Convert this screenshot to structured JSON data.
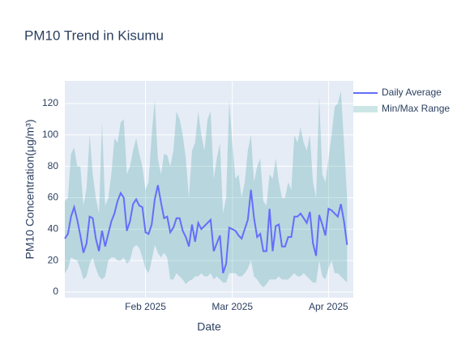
{
  "chart_data": {
    "type": "line",
    "title": "PM10 Trend in Kisumu",
    "x_label": "Date",
    "y_label": "PM10 Concentration(μg/m³)",
    "x": [
      "2025-01-06",
      "2025-01-07",
      "2025-01-08",
      "2025-01-09",
      "2025-01-10",
      "2025-01-11",
      "2025-01-12",
      "2025-01-13",
      "2025-01-14",
      "2025-01-15",
      "2025-01-16",
      "2025-01-17",
      "2025-01-18",
      "2025-01-19",
      "2025-01-20",
      "2025-01-21",
      "2025-01-22",
      "2025-01-23",
      "2025-01-24",
      "2025-01-25",
      "2025-01-26",
      "2025-01-27",
      "2025-01-28",
      "2025-01-29",
      "2025-01-30",
      "2025-01-31",
      "2025-02-01",
      "2025-02-02",
      "2025-02-03",
      "2025-02-04",
      "2025-02-05",
      "2025-02-06",
      "2025-02-07",
      "2025-02-08",
      "2025-02-09",
      "2025-02-10",
      "2025-02-11",
      "2025-02-12",
      "2025-02-13",
      "2025-02-14",
      "2025-02-15",
      "2025-02-16",
      "2025-02-17",
      "2025-02-18",
      "2025-02-19",
      "2025-02-20",
      "2025-02-21",
      "2025-02-22",
      "2025-02-23",
      "2025-02-24",
      "2025-02-25",
      "2025-02-26",
      "2025-02-27",
      "2025-02-28",
      "2025-03-01",
      "2025-03-02",
      "2025-03-03",
      "2025-03-04",
      "2025-03-05",
      "2025-03-06",
      "2025-03-07",
      "2025-03-08",
      "2025-03-09",
      "2025-03-10",
      "2025-03-11",
      "2025-03-12",
      "2025-03-13",
      "2025-03-14",
      "2025-03-15",
      "2025-03-16",
      "2025-03-17",
      "2025-03-18",
      "2025-03-19",
      "2025-03-20",
      "2025-03-21",
      "2025-03-22",
      "2025-03-23",
      "2025-03-24",
      "2025-03-25",
      "2025-03-26",
      "2025-03-27",
      "2025-03-28",
      "2025-03-29",
      "2025-03-30",
      "2025-03-31",
      "2025-04-01",
      "2025-04-02",
      "2025-04-03",
      "2025-04-04",
      "2025-04-05",
      "2025-04-06",
      "2025-04-07"
    ],
    "series": [
      {
        "name": "Daily Average",
        "color": "#636efa",
        "values": [
          34,
          37,
          48,
          54,
          46,
          36,
          25,
          31,
          48,
          47,
          34,
          26,
          39,
          29,
          37,
          45,
          50,
          58,
          63,
          60,
          39,
          45,
          56,
          59,
          55,
          54,
          38,
          37,
          43,
          59,
          68,
          57,
          47,
          48,
          38,
          41,
          47,
          47,
          39,
          35,
          29,
          43,
          32,
          44,
          40,
          42,
          44,
          46,
          26,
          31,
          36,
          12,
          18,
          41,
          40,
          39,
          36,
          34,
          40,
          46,
          65,
          47,
          35,
          37,
          26,
          26,
          53,
          26,
          42,
          43,
          29,
          29,
          35,
          35,
          48,
          48,
          50,
          47,
          44,
          51,
          31,
          23,
          49,
          43,
          36,
          53,
          52,
          50,
          48,
          56,
          45,
          30
        ]
      },
      {
        "name": "Min/Max Range",
        "color": "rgba(0,128,128,0.2)",
        "upper": [
          58,
          60,
          88,
          92,
          80,
          80,
          55,
          66,
          100,
          75,
          60,
          50,
          108,
          55,
          60,
          75,
          98,
          95,
          108,
          110,
          75,
          80,
          90,
          98,
          88,
          80,
          65,
          70,
          100,
          122,
          85,
          75,
          88,
          87,
          80,
          90,
          115,
          110,
          100,
          85,
          60,
          90,
          95,
          115,
          100,
          90,
          110,
          115,
          72,
          85,
          95,
          50,
          60,
          122,
          95,
          72,
          75,
          60,
          70,
          90,
          100,
          70,
          80,
          85,
          58,
          55,
          75,
          72,
          85,
          70,
          60,
          60,
          70,
          65,
          100,
          95,
          105,
          95,
          90,
          100,
          70,
          60,
          125,
          75,
          70,
          85,
          100,
          118,
          120,
          128,
          95,
          60
        ],
        "lower": [
          12,
          15,
          22,
          21,
          20,
          15,
          8,
          10,
          18,
          22,
          15,
          10,
          8,
          10,
          20,
          22,
          22,
          20,
          20,
          22,
          18,
          20,
          28,
          30,
          28,
          22,
          15,
          12,
          20,
          30,
          25,
          22,
          25,
          22,
          8,
          8,
          12,
          10,
          8,
          5,
          7,
          8,
          10,
          10,
          12,
          10,
          10,
          12,
          8,
          10,
          8,
          6,
          6,
          12,
          12,
          12,
          10,
          10,
          12,
          15,
          20,
          10,
          8,
          5,
          3,
          5,
          8,
          8,
          8,
          10,
          8,
          8,
          8,
          10,
          12,
          10,
          10,
          12,
          10,
          8,
          6,
          6,
          20,
          10,
          8,
          15,
          20,
          12,
          12,
          10,
          8,
          6
        ]
      }
    ],
    "xlim": [
      "2025-01-06",
      "2025-04-09"
    ],
    "xticks": [
      {
        "value": "2025-02-01",
        "label": "Feb 2025"
      },
      {
        "value": "2025-03-01",
        "label": "Mar 2025"
      },
      {
        "value": "2025-04-01",
        "label": "Apr 2025"
      }
    ],
    "ylim": [
      -3.6,
      134.4
    ],
    "yticks": [
      0,
      20,
      40,
      60,
      80,
      100,
      120
    ],
    "grid": true
  }
}
